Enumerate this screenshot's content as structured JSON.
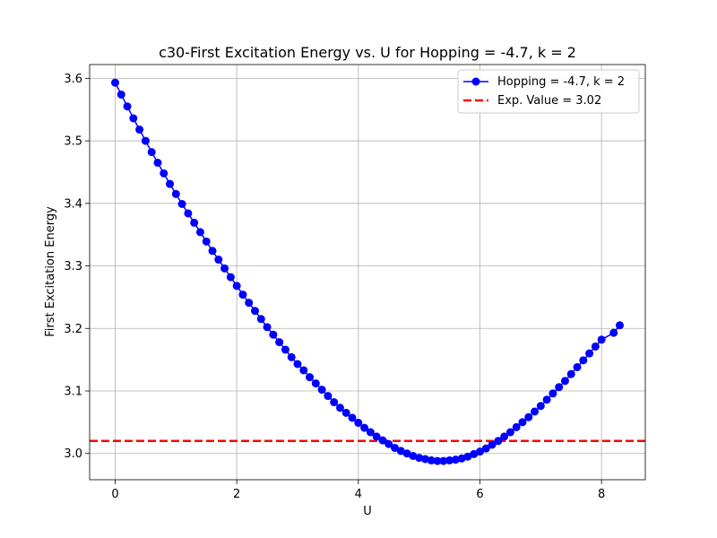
{
  "chart_data": {
    "type": "line",
    "title": "c30-First Excitation Energy vs. U for Hopping = -4.7, k = 2",
    "xlabel": "U",
    "ylabel": "First Excitation Energy",
    "xlim": [
      -0.42,
      8.72
    ],
    "ylim": [
      2.958,
      3.622
    ],
    "xticks": [
      0,
      2,
      4,
      6,
      8
    ],
    "yticks": [
      3.0,
      3.1,
      3.2,
      3.3,
      3.4,
      3.5,
      3.6
    ],
    "grid": true,
    "legend_position": "top-right",
    "series": [
      {
        "name": "Hopping = -4.7, k = 2",
        "color": "#0000ff",
        "marker": "circle",
        "x": [
          0.0,
          0.1,
          0.2,
          0.3,
          0.4,
          0.5,
          0.6,
          0.7,
          0.8,
          0.9,
          1.0,
          1.1,
          1.2,
          1.3,
          1.4,
          1.5,
          1.6,
          1.7,
          1.8,
          1.9,
          2.0,
          2.1,
          2.2,
          2.3,
          2.4,
          2.5,
          2.6,
          2.7,
          2.8,
          2.9,
          3.0,
          3.1,
          3.2,
          3.3,
          3.4,
          3.5,
          3.6,
          3.7,
          3.8,
          3.9,
          4.0,
          4.1,
          4.2,
          4.3,
          4.4,
          4.5,
          4.6,
          4.7,
          4.8,
          4.9,
          5.0,
          5.1,
          5.2,
          5.3,
          5.4,
          5.5,
          5.6,
          5.7,
          5.8,
          5.9,
          6.0,
          6.1,
          6.2,
          6.3,
          6.4,
          6.5,
          6.6,
          6.7,
          6.8,
          6.9,
          7.0,
          7.1,
          7.2,
          7.3,
          7.4,
          7.5,
          7.6,
          7.7,
          7.8,
          7.9,
          8.0,
          8.2,
          8.3
        ],
        "y": [
          3.593,
          3.574,
          3.555,
          3.536,
          3.518,
          3.5,
          3.482,
          3.465,
          3.448,
          3.431,
          3.415,
          3.399,
          3.384,
          3.369,
          3.354,
          3.339,
          3.324,
          3.31,
          3.296,
          3.282,
          3.268,
          3.254,
          3.241,
          3.228,
          3.215,
          3.202,
          3.19,
          3.178,
          3.166,
          3.154,
          3.143,
          3.133,
          3.122,
          3.112,
          3.102,
          3.092,
          3.082,
          3.073,
          3.065,
          3.057,
          3.049,
          3.041,
          3.034,
          3.027,
          3.021,
          3.015,
          3.009,
          3.004,
          3.0,
          2.996,
          2.993,
          2.991,
          2.989,
          2.988,
          2.988,
          2.989,
          2.99,
          2.992,
          2.995,
          2.999,
          3.003,
          3.008,
          3.014,
          3.02,
          3.027,
          3.034,
          3.042,
          3.05,
          3.058,
          3.067,
          3.076,
          3.086,
          3.096,
          3.106,
          3.116,
          3.127,
          3.138,
          3.149,
          3.16,
          3.171,
          3.182,
          3.193,
          3.205
        ]
      }
    ],
    "reference_line": {
      "name": "Exp. Value = 3.02",
      "value": 3.02,
      "color": "#ff0000",
      "style": "dashed"
    }
  }
}
